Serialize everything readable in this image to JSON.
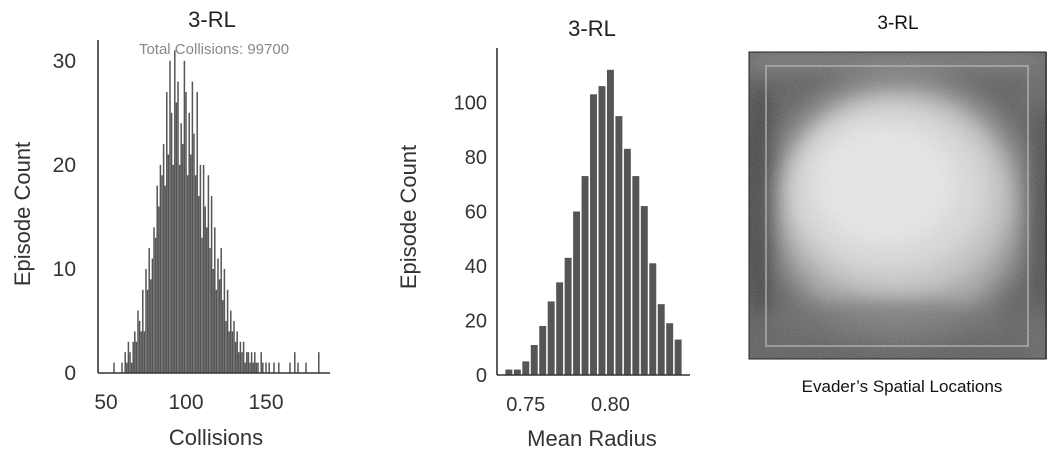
{
  "chart_data": [
    {
      "type": "bar",
      "title": "3-RL",
      "annotation": "Total Collisions: 99700",
      "xlabel": "Collisions",
      "ylabel": "Episode Count",
      "xlim": [
        45,
        190
      ],
      "ylim": [
        0,
        32
      ],
      "xticks": [
        "50",
        "100",
        "150"
      ],
      "yticks": [
        "0",
        "10",
        "20",
        "30"
      ],
      "bar_color": "#555555",
      "grid": false,
      "x": [
        55,
        60,
        62,
        63,
        64,
        65,
        66,
        67,
        68,
        69,
        70,
        71,
        72,
        73,
        74,
        75,
        76,
        77,
        78,
        79,
        80,
        81,
        82,
        83,
        84,
        85,
        86,
        87,
        88,
        89,
        90,
        91,
        92,
        93,
        94,
        95,
        96,
        97,
        98,
        99,
        100,
        101,
        102,
        103,
        104,
        105,
        106,
        107,
        108,
        109,
        110,
        111,
        112,
        113,
        114,
        115,
        116,
        117,
        118,
        119,
        120,
        121,
        122,
        123,
        124,
        125,
        126,
        127,
        128,
        129,
        130,
        131,
        132,
        133,
        134,
        135,
        136,
        137,
        138,
        139,
        140,
        141,
        142,
        143,
        144,
        145,
        147,
        148,
        150,
        152,
        155,
        158,
        165,
        168,
        170,
        175,
        183
      ],
      "values": [
        1,
        1,
        2,
        1,
        3,
        2,
        1,
        3,
        4,
        3,
        6,
        5,
        4,
        8,
        4,
        10,
        8,
        12,
        9,
        11,
        14,
        13,
        18,
        16,
        20,
        19,
        22,
        18,
        27,
        21,
        30,
        25,
        20,
        31,
        26,
        28,
        20,
        24,
        22,
        30,
        27,
        19,
        25,
        21,
        28,
        23,
        19,
        27,
        17,
        20,
        13,
        20,
        16,
        14,
        19,
        12,
        17,
        10,
        14,
        8,
        11,
        9,
        12,
        7,
        10,
        5,
        8,
        4,
        6,
        4,
        5,
        3,
        4,
        2,
        3,
        2,
        3,
        1,
        2,
        2,
        1,
        2,
        1,
        2,
        1,
        1,
        2,
        1,
        1,
        1,
        1,
        1,
        1,
        2,
        1,
        1,
        2
      ]
    },
    {
      "type": "bar",
      "title": "3-RL",
      "xlabel": "Mean Radius",
      "ylabel": "Episode Count",
      "xlim": [
        0.733,
        0.847
      ],
      "ylim": [
        0,
        120
      ],
      "xticks": [
        "0.75",
        "0.80"
      ],
      "yticks": [
        "0",
        "20",
        "40",
        "60",
        "80",
        "100"
      ],
      "bar_color": "#555555",
      "grid": false,
      "x": [
        0.74,
        0.745,
        0.75,
        0.755,
        0.76,
        0.765,
        0.77,
        0.775,
        0.78,
        0.785,
        0.79,
        0.795,
        0.8,
        0.805,
        0.81,
        0.815,
        0.82,
        0.825,
        0.83,
        0.835,
        0.84
      ],
      "values": [
        2,
        2,
        5,
        11,
        18,
        27,
        34,
        43,
        60,
        73,
        103,
        106,
        112,
        95,
        83,
        73,
        62,
        41,
        26,
        19,
        13
      ]
    },
    {
      "type": "heatmap",
      "title": "3-RL",
      "caption": "Evader’s Spatial Locations",
      "colormap": "grayscale",
      "description_values": {
        "center_density": "low",
        "ring_density": "high",
        "edge_density": "high"
      }
    }
  ]
}
